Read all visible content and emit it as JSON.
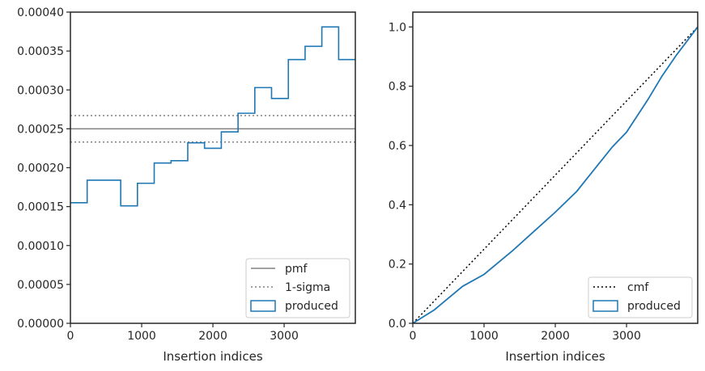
{
  "colors": {
    "produced": "#1f77b4",
    "pmf": "#808080",
    "sigma": "#808080",
    "cmf": "#000000",
    "axes": "#262626"
  },
  "chart_data": [
    {
      "type": "step",
      "title": "",
      "xlabel": "Insertion indices",
      "ylabel": "",
      "xlim": [
        0,
        3999
      ],
      "ylim": [
        0,
        0.0004
      ],
      "xticks": [
        0,
        1000,
        2000,
        3000
      ],
      "xtick_labels": [
        "0",
        "1000",
        "2000",
        "3000"
      ],
      "yticks": [
        0,
        5e-05,
        0.0001,
        0.00015,
        0.0002,
        0.00025,
        0.0003,
        0.00035,
        0.0004
      ],
      "ytick_labels": [
        "0.00000",
        "0.00005",
        "0.00010",
        "0.00015",
        "0.00020",
        "0.00025",
        "0.00030",
        "0.00035",
        "0.00040"
      ],
      "legend_position": "lower right",
      "series": [
        {
          "name": "pmf",
          "kind": "hline",
          "value": 0.00025,
          "style": "solid"
        },
        {
          "name": "1-sigma",
          "kind": "hlines",
          "values": [
            0.000233,
            0.000267
          ],
          "style": "dotted"
        },
        {
          "name": "produced",
          "kind": "histogram",
          "bin_edges": [
            0,
            235,
            470,
            706,
            941,
            1176,
            1412,
            1647,
            1882,
            2118,
            2353,
            2588,
            2823,
            3059,
            3294,
            3529,
            3765,
            3999
          ],
          "values": [
            0.000155,
            0.000184,
            0.000184,
            0.000151,
            0.00018,
            0.000206,
            0.000209,
            0.000232,
            0.000225,
            0.000246,
            0.00027,
            0.000303,
            0.000289,
            0.000339,
            0.000356,
            0.000381,
            0.000339
          ]
        }
      ]
    },
    {
      "type": "line",
      "title": "",
      "xlabel": "Insertion indices",
      "ylabel": "",
      "xlim": [
        0,
        3999
      ],
      "ylim": [
        0,
        1.05
      ],
      "xticks": [
        0,
        1000,
        2000,
        3000
      ],
      "xtick_labels": [
        "0",
        "1000",
        "2000",
        "3000"
      ],
      "yticks": [
        0,
        0.2,
        0.4,
        0.6,
        0.8,
        1.0
      ],
      "ytick_labels": [
        "0.0",
        "0.2",
        "0.4",
        "0.6",
        "0.8",
        "1.0"
      ],
      "legend_position": "lower right",
      "series": [
        {
          "name": "cmf",
          "style": "dotted",
          "x": [
            0,
            3999
          ],
          "y": [
            0,
            1.0
          ]
        },
        {
          "name": "produced",
          "style": "step",
          "x": [
            0,
            300,
            500,
            700,
            1000,
            1200,
            1400,
            1700,
            2000,
            2300,
            2500,
            2600,
            2800,
            3000,
            3300,
            3500,
            3700,
            3999
          ],
          "y": [
            0,
            0.045,
            0.085,
            0.125,
            0.165,
            0.205,
            0.245,
            0.31,
            0.375,
            0.445,
            0.505,
            0.535,
            0.595,
            0.645,
            0.755,
            0.835,
            0.905,
            1.0
          ]
        }
      ]
    }
  ]
}
